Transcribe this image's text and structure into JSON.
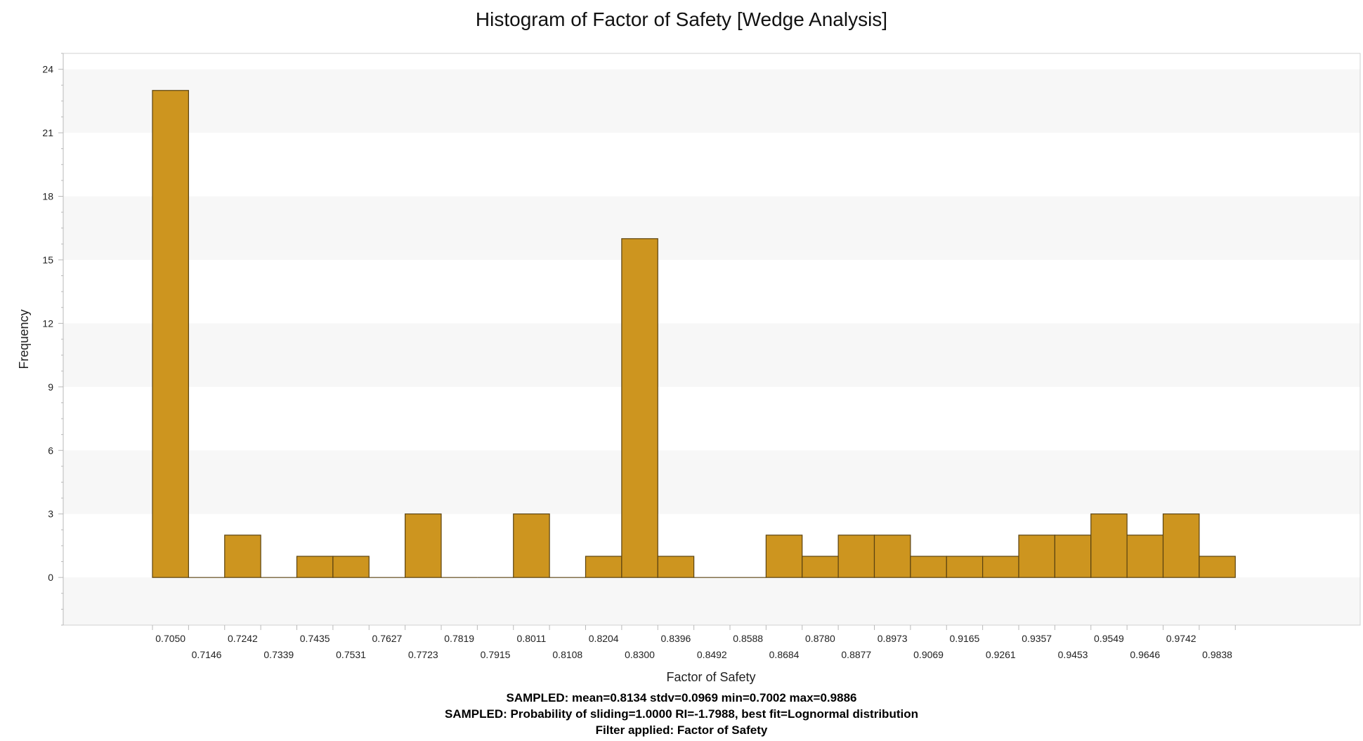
{
  "chart_data": {
    "type": "bar",
    "title": "Histogram of Factor of Safety [Wedge Analysis]",
    "xlabel": "Factor of Safety",
    "ylabel": "Frequency",
    "ylim": [
      -2.25,
      24.75
    ],
    "yticks": [
      "24",
      "21",
      "18",
      "15",
      "12",
      "9",
      "6",
      "3",
      "0"
    ],
    "bar_color": "#cd951f",
    "bar_edge_color": "#5a4210",
    "band_color": "#f7f7f7",
    "categories": [
      "0.7050",
      "0.7146",
      "0.7242",
      "0.7339",
      "0.7435",
      "0.7531",
      "0.7627",
      "0.7723",
      "0.7819",
      "0.7915",
      "0.8011",
      "0.8108",
      "0.8204",
      "0.8300",
      "0.8396",
      "0.8492",
      "0.8588",
      "0.8684",
      "0.8780",
      "0.8877",
      "0.8973",
      "0.9069",
      "0.9165",
      "0.9261",
      "0.9357",
      "0.9453",
      "0.9549",
      "0.9646",
      "0.9742",
      "0.9838"
    ],
    "values": [
      23,
      0,
      2,
      0,
      1,
      1,
      0,
      3,
      0,
      0,
      3,
      0,
      1,
      16,
      1,
      0,
      0,
      2,
      1,
      2,
      2,
      1,
      1,
      1,
      2,
      2,
      3,
      2,
      3,
      1
    ]
  },
  "stats": {
    "line1": "SAMPLED: mean=0.8134 stdv=0.0969 min=0.7002 max=0.9886",
    "line2": "SAMPLED: Probability of sliding=1.0000 RI=-1.7988, best fit=Lognormal distribution",
    "line3": "Filter applied: Factor of Safety"
  }
}
